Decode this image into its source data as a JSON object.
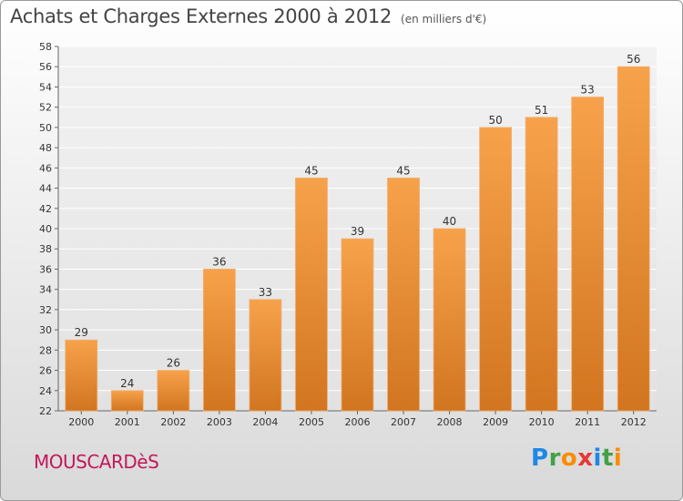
{
  "title": "Achats et Charges Externes 2000 à 2012",
  "unit_label": "(en milliers d'€)",
  "commune": "MOUSCARDèS",
  "logo": {
    "text": "Proxiti",
    "letters": [
      {
        "ch": "P",
        "color": "#1e88e5"
      },
      {
        "ch": "r",
        "color": "#43a047"
      },
      {
        "ch": "o",
        "color": "#fb8c00"
      },
      {
        "ch": "x",
        "color": "#e53935"
      },
      {
        "ch": "i",
        "color": "#1e88e5"
      },
      {
        "ch": "t",
        "color": "#43a047"
      },
      {
        "ch": "i",
        "color": "#fb8c00"
      }
    ]
  },
  "colors": {
    "bar_light": "#f7a24b",
    "bar_dark": "#d27520",
    "commune": "#c2185b"
  },
  "chart_data": {
    "type": "bar",
    "title": "Achats et Charges Externes 2000 à 2012",
    "ylabel": "",
    "xlabel": "",
    "categories": [
      "2000",
      "2001",
      "2002",
      "2003",
      "2004",
      "2005",
      "2006",
      "2007",
      "2008",
      "2009",
      "2010",
      "2011",
      "2012"
    ],
    "values": [
      29,
      24,
      26,
      36,
      33,
      45,
      39,
      45,
      40,
      50,
      51,
      53,
      56
    ],
    "ylim": [
      22,
      58
    ],
    "yticks": [
      22,
      24,
      26,
      28,
      30,
      32,
      34,
      36,
      38,
      40,
      42,
      44,
      46,
      48,
      50,
      52,
      54,
      56,
      58
    ],
    "grid": true,
    "legend": "none"
  }
}
